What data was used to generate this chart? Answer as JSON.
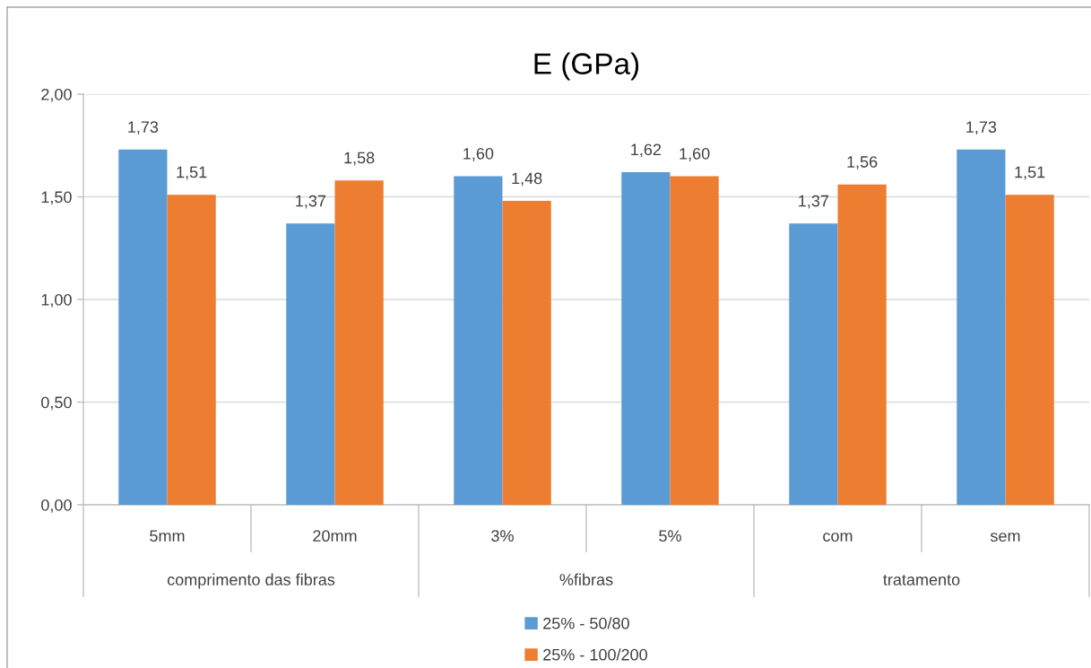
{
  "chart_data": {
    "type": "bar",
    "title": "E (GPa)",
    "categories": [
      "5mm",
      "20mm",
      "3%",
      "5%",
      "com",
      "sem"
    ],
    "series": [
      {
        "name": "25% - 50/80",
        "color": "#5b9bd5",
        "values": [
          1.73,
          1.37,
          1.6,
          1.62,
          1.37,
          1.73
        ],
        "value_labels": [
          "1,73",
          "1,37",
          "1,60",
          "1,62",
          "1,37",
          "1,73"
        ]
      },
      {
        "name": "25% - 100/200",
        "color": "#ed7d31",
        "values": [
          1.51,
          1.58,
          1.48,
          1.6,
          1.56,
          1.51
        ],
        "value_labels": [
          "1,51",
          "1,58",
          "1,48",
          "1,60",
          "1,56",
          "1,51"
        ]
      }
    ],
    "ylim": [
      0,
      2
    ],
    "yticks": [
      {
        "value": 0,
        "label": "0,00"
      },
      {
        "value": 0.5,
        "label": "0,50"
      },
      {
        "value": 1,
        "label": "1,00"
      },
      {
        "value": 1.5,
        "label": "1,50"
      },
      {
        "value": 2,
        "label": "2,00"
      }
    ],
    "grid": "y",
    "legend": "bottom",
    "annotations": [
      "comprimento das fibras",
      "%fibras",
      "tratamento"
    ]
  }
}
